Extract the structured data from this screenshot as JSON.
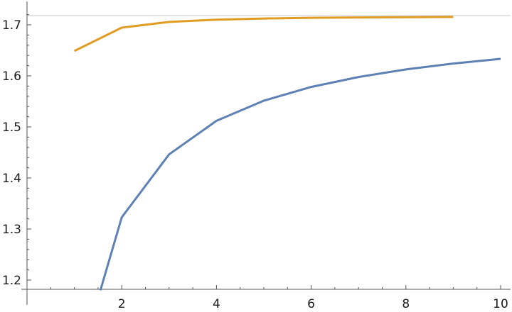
{
  "chart_data": {
    "type": "line",
    "title": "",
    "xlabel": "",
    "ylabel": "",
    "xlim": [
      0,
      10.05
    ],
    "ylim": [
      1.18,
      1.74
    ],
    "x_ticks": [
      {
        "value": 2,
        "label": "2"
      },
      {
        "value": 4,
        "label": "4"
      },
      {
        "value": 6,
        "label": "6"
      },
      {
        "value": 8,
        "label": "8"
      },
      {
        "value": 10,
        "label": "10"
      }
    ],
    "y_ticks": [
      {
        "value": 1.2,
        "label": "1.2"
      },
      {
        "value": 1.3,
        "label": "1.3"
      },
      {
        "value": 1.4,
        "label": "1.4"
      },
      {
        "value": 1.5,
        "label": "1.5"
      },
      {
        "value": 1.6,
        "label": "1.6"
      },
      {
        "value": 1.7,
        "label": "1.7"
      }
    ],
    "reference_line_y": 1.718,
    "grid": false,
    "legend": "none",
    "series": [
      {
        "color": "#5e81b5",
        "x": [
          1.55,
          2,
          3,
          4,
          5,
          6,
          7,
          8,
          9,
          10
        ],
        "y": [
          1.18,
          1.3229,
          1.4462,
          1.5119,
          1.5514,
          1.5783,
          1.5978,
          1.6126,
          1.6241,
          1.6334
        ]
      },
      {
        "color": "#e19c24",
        "x": [
          1,
          2,
          3,
          4,
          5,
          6,
          7,
          8,
          9
        ],
        "y": [
          1.6487,
          1.6944,
          1.7057,
          1.7101,
          1.7124,
          1.7137,
          1.7145,
          1.715,
          1.7154
        ]
      }
    ]
  }
}
